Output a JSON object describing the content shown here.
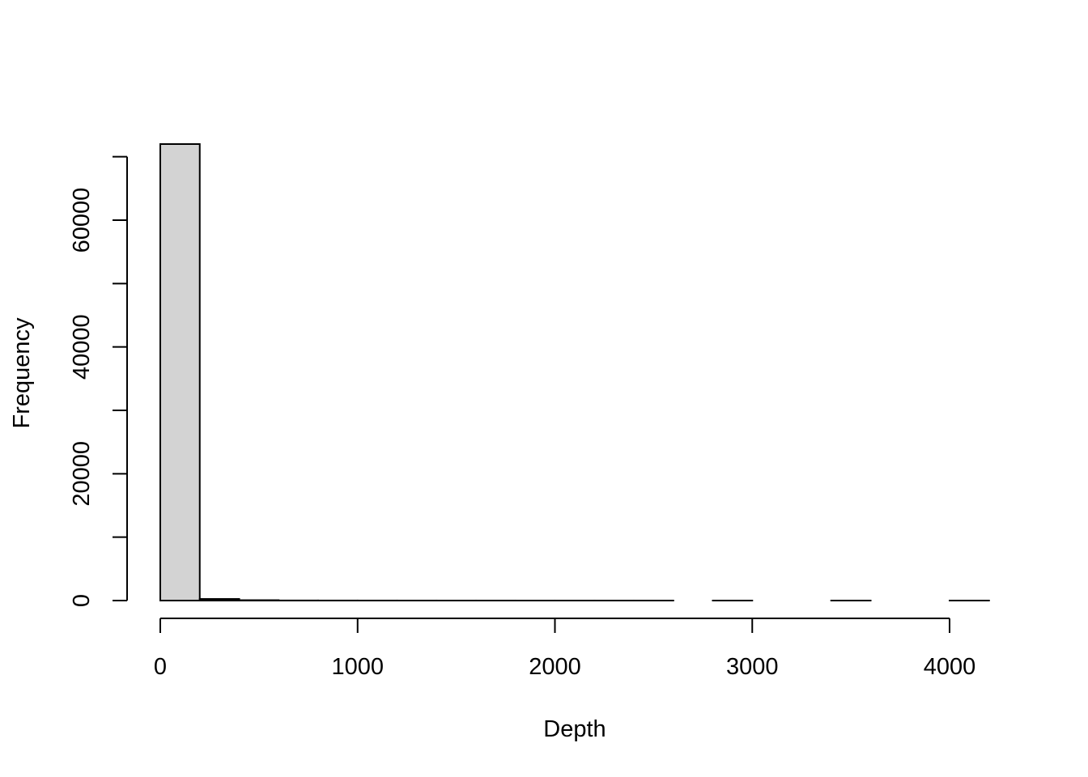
{
  "chart_data": {
    "type": "bar",
    "title": "",
    "xlabel": "Depth",
    "ylabel": "Frequency",
    "bin_width": 200,
    "bins": [
      {
        "start": 0,
        "end": 200,
        "count": 72000
      },
      {
        "start": 200,
        "end": 400,
        "count": 250
      },
      {
        "start": 400,
        "end": 600,
        "count": 60
      },
      {
        "start": 600,
        "end": 800,
        "count": 15
      },
      {
        "start": 800,
        "end": 1000,
        "count": 8
      },
      {
        "start": 1000,
        "end": 1200,
        "count": 5
      },
      {
        "start": 1200,
        "end": 1400,
        "count": 3
      },
      {
        "start": 1400,
        "end": 1600,
        "count": 2
      },
      {
        "start": 1600,
        "end": 1800,
        "count": 2
      },
      {
        "start": 1800,
        "end": 2000,
        "count": 1
      },
      {
        "start": 2000,
        "end": 2200,
        "count": 1
      },
      {
        "start": 2200,
        "end": 2400,
        "count": 1
      },
      {
        "start": 2400,
        "end": 2600,
        "count": 1
      },
      {
        "start": 2600,
        "end": 2800,
        "count": 0
      },
      {
        "start": 2800,
        "end": 3000,
        "count": 1
      },
      {
        "start": 3000,
        "end": 3200,
        "count": 0
      },
      {
        "start": 3200,
        "end": 3400,
        "count": 0
      },
      {
        "start": 3400,
        "end": 3600,
        "count": 1
      },
      {
        "start": 3600,
        "end": 3800,
        "count": 0
      },
      {
        "start": 3800,
        "end": 4000,
        "count": 0
      },
      {
        "start": 4000,
        "end": 4200,
        "count": 1
      }
    ],
    "xlim": [
      0,
      4200
    ],
    "ylim": [
      0,
      70000
    ],
    "x_ticks": [
      0,
      1000,
      2000,
      3000,
      4000
    ],
    "y_ticks": [
      0,
      10000,
      20000,
      30000,
      40000,
      50000,
      60000,
      70000
    ],
    "y_tick_labels": [
      {
        "value": 0,
        "label": "0"
      },
      {
        "value": 20000,
        "label": "20000"
      },
      {
        "value": 40000,
        "label": "40000"
      },
      {
        "value": 60000,
        "label": "60000"
      }
    ],
    "grid": false,
    "colors": {
      "bar_fill": "#d3d3d3",
      "bar_stroke": "#000000"
    }
  }
}
